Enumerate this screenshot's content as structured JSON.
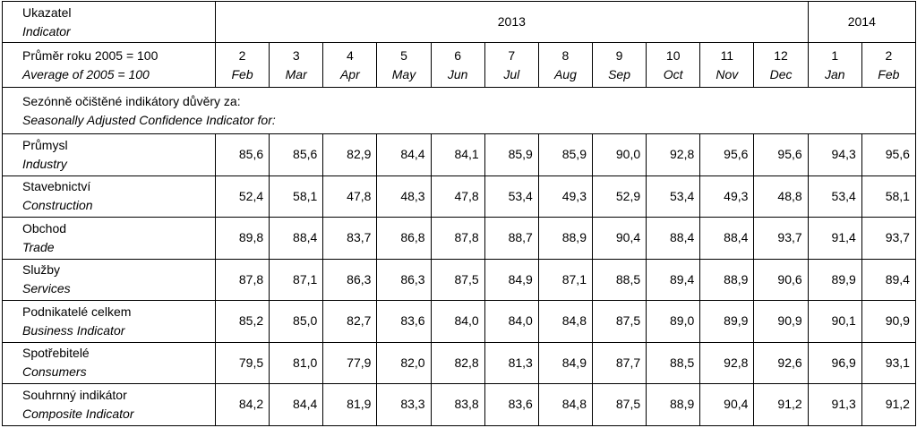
{
  "header": {
    "indicator_cz": "Ukazatel",
    "indicator_en": "Indicator",
    "base_cz": "Průměr roku 2005 = 100",
    "base_en": "Average of 2005 = 100",
    "years": [
      {
        "label": "2013",
        "months": [
          {
            "num": "2",
            "name": "Feb"
          },
          {
            "num": "3",
            "name": "Mar"
          },
          {
            "num": "4",
            "name": "Apr"
          },
          {
            "num": "5",
            "name": "May"
          },
          {
            "num": "6",
            "name": "Jun"
          },
          {
            "num": "7",
            "name": "Jul"
          },
          {
            "num": "8",
            "name": "Aug"
          },
          {
            "num": "9",
            "name": "Sep"
          },
          {
            "num": "10",
            "name": "Oct"
          },
          {
            "num": "11",
            "name": "Nov"
          },
          {
            "num": "12",
            "name": "Dec"
          }
        ]
      },
      {
        "label": "2014",
        "months": [
          {
            "num": "1",
            "name": "Jan"
          },
          {
            "num": "2",
            "name": "Feb"
          }
        ]
      }
    ]
  },
  "section": {
    "cz": "Sezónně očištěné indikátory důvěry za:",
    "en": "Seasonally Adjusted Confidence Indicator for:"
  },
  "table": {
    "rows": [
      {
        "cz": "Průmysl",
        "en": "Industry",
        "values": [
          "85,6",
          "85,6",
          "82,9",
          "84,4",
          "84,1",
          "85,9",
          "85,9",
          "90,0",
          "92,8",
          "95,6",
          "95,6",
          "94,3",
          "95,6"
        ]
      },
      {
        "cz": "Stavebnictví",
        "en": "Construction",
        "values": [
          "52,4",
          "58,1",
          "47,8",
          "48,3",
          "47,8",
          "53,4",
          "49,3",
          "52,9",
          "53,4",
          "49,3",
          "48,8",
          "53,4",
          "58,1"
        ]
      },
      {
        "cz": "Obchod",
        "en": "Trade",
        "values": [
          "89,8",
          "88,4",
          "83,7",
          "86,8",
          "87,8",
          "88,7",
          "88,9",
          "90,4",
          "88,4",
          "88,4",
          "93,7",
          "91,4",
          "93,7"
        ]
      },
      {
        "cz": "Služby",
        "en": "Services",
        "values": [
          "87,8",
          "87,1",
          "86,3",
          "86,3",
          "87,5",
          "84,9",
          "87,1",
          "88,5",
          "89,4",
          "88,9",
          "90,6",
          "89,9",
          "89,4"
        ]
      },
      {
        "cz": "Podnikatelé celkem",
        "en": "Business Indicator",
        "values": [
          "85,2",
          "85,0",
          "82,7",
          "83,6",
          "84,0",
          "84,0",
          "84,8",
          "87,5",
          "89,0",
          "89,9",
          "90,9",
          "90,1",
          "90,9"
        ]
      },
      {
        "cz": "Spotřebitelé",
        "en": "Consumers",
        "values": [
          "79,5",
          "81,0",
          "77,9",
          "82,0",
          "82,8",
          "81,3",
          "84,9",
          "87,7",
          "88,5",
          "92,8",
          "92,6",
          "96,9",
          "93,1"
        ]
      },
      {
        "cz": "Souhrnný indikátor",
        "en": "Composite Indicator",
        "values": [
          "84,2",
          "84,4",
          "81,9",
          "83,3",
          "83,8",
          "83,6",
          "84,8",
          "87,5",
          "88,9",
          "90,4",
          "91,2",
          "91,3",
          "91,2"
        ]
      }
    ]
  }
}
